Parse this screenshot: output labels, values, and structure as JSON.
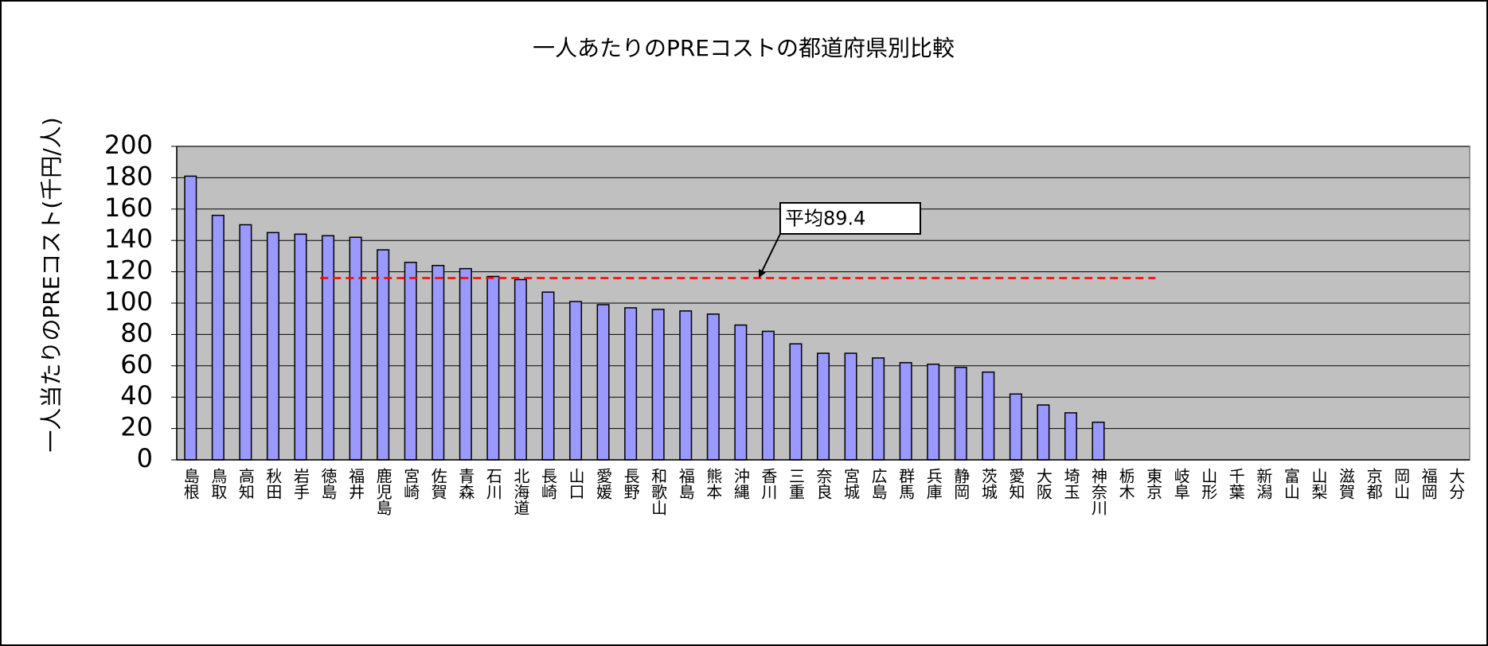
{
  "chart_data": {
    "type": "bar",
    "title": "一人あたりのPREコストの都道府県別比較",
    "y_label": "一人当たりのPREコスト(千円/人)",
    "categories": [
      "島根",
      "鳥取",
      "高知",
      "秋田",
      "岩手",
      "徳島",
      "福井",
      "鹿児島",
      "宮崎",
      "佐賀",
      "青森",
      "石川",
      "北海道",
      "長崎",
      "山口",
      "愛媛",
      "長野",
      "和歌山",
      "福島",
      "熊本",
      "沖縄",
      "香川",
      "三重",
      "奈良",
      "宮城",
      "広島",
      "群馬",
      "兵庫",
      "静岡",
      "茨城",
      "愛知",
      "大阪",
      "埼玉",
      "神奈川",
      "栃木",
      "東京",
      "岐阜",
      "山形",
      "千葉",
      "新潟",
      "富山",
      "山梨",
      "滋賀",
      "京都",
      "岡山",
      "福岡",
      "大分"
    ],
    "values": [
      181,
      156,
      150,
      145,
      144,
      143,
      142,
      134,
      126,
      124,
      122,
      117,
      115,
      107,
      101,
      99,
      97,
      96,
      95,
      93,
      86,
      82,
      74,
      68,
      68,
      65,
      62,
      61,
      59,
      56,
      42,
      35,
      30,
      24,
      null,
      null,
      null,
      null,
      null,
      null,
      null,
      null,
      null,
      null,
      null,
      null,
      null
    ],
    "color": "#9999ff",
    "ylim": [
      0,
      200
    ],
    "yticks": [
      0,
      20,
      40,
      60,
      80,
      100,
      120,
      140,
      160,
      180,
      200
    ],
    "grid": true,
    "reference_line": {
      "value": 116,
      "color": "#ff0000"
    },
    "annotation": "平均89.4"
  }
}
